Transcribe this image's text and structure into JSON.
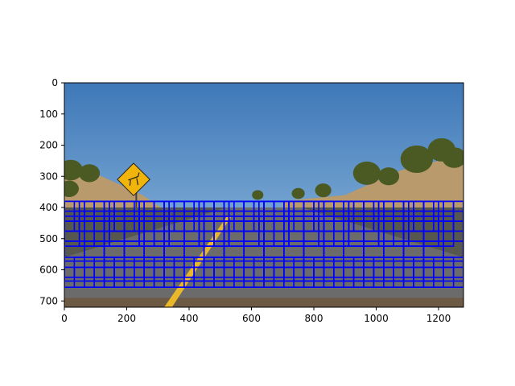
{
  "chart_data": {
    "type": "image",
    "image_width": 1280,
    "image_height": 720,
    "x_ticks": [
      0,
      200,
      400,
      600,
      800,
      1000,
      1200
    ],
    "y_ticks": [
      0,
      100,
      200,
      300,
      400,
      500,
      600,
      700
    ],
    "x_tick_labels": [
      "0",
      "200",
      "400",
      "600",
      "800",
      "1000",
      "1200"
    ],
    "y_tick_labels": [
      "0",
      "100",
      "200",
      "300",
      "400",
      "500",
      "600",
      "700"
    ],
    "xlim": [
      0,
      1280
    ],
    "ylim": [
      720,
      0
    ],
    "grid": false,
    "box_color": "#0000ff",
    "sliding_windows": [
      {
        "xstart": 0,
        "xstop": 1280,
        "ystart": 380,
        "ystop": 480,
        "window": 64,
        "overlap": 0.5
      },
      {
        "xstart": 0,
        "xstop": 1280,
        "ystart": 380,
        "ystop": 560,
        "window": 96,
        "overlap": 0.5
      },
      {
        "xstart": 0,
        "xstop": 1280,
        "ystart": 380,
        "ystop": 640,
        "window": 128,
        "overlap": 0.5
      },
      {
        "xstart": 0,
        "xstop": 1280,
        "ystart": 560,
        "ystop": 680,
        "window": 64,
        "overlap": 0.5
      }
    ],
    "scene": {
      "sky_top": "#3e78b8",
      "sky_bottom": "#9cc3e3",
      "hill_color": "#b89a6c",
      "tree_color": "#4a5a22",
      "road_color": "#6b6b6b",
      "lane_line_color": "#e8b82a",
      "sign_color": "#f0b40a"
    }
  }
}
